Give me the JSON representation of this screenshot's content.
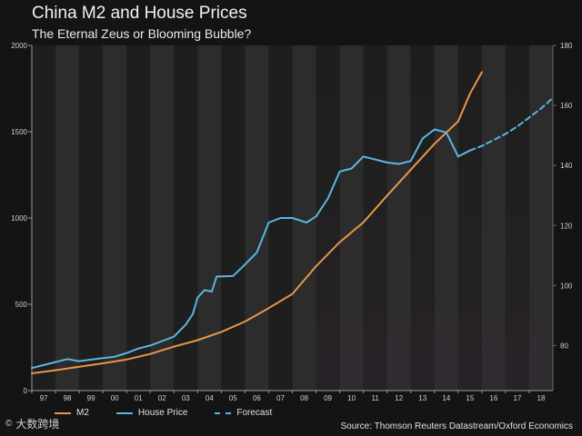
{
  "chart_data": {
    "type": "line",
    "title": "China M2 and House Prices",
    "subtitle": "The Eternal Zeus or Blooming Bubble?",
    "source": "Source: Thomson Reuters Datastream/Oxford Economics",
    "watermark": "大数跨境",
    "x_ticks": [
      "97",
      "98",
      "99",
      "00",
      "01",
      "02",
      "03",
      "04",
      "05",
      "06",
      "07",
      "08",
      "09",
      "10",
      "11",
      "12",
      "13",
      "14",
      "15",
      "16",
      "17",
      "18"
    ],
    "x_range": [
      1997,
      2019
    ],
    "left_axis": {
      "ticks": [
        0,
        500,
        1000,
        1500,
        2000
      ],
      "range": [
        0,
        2000
      ]
    },
    "right_axis": {
      "ticks": [
        80,
        100,
        120,
        140,
        160,
        180
      ],
      "range": [
        65,
        180
      ]
    },
    "legend": [
      "M2",
      "House Price",
      "Forecast"
    ],
    "colors": {
      "m2": "#e8954a",
      "house": "#5bb6e0",
      "forecast": "#5bb6e0"
    },
    "series": [
      {
        "name": "M2",
        "axis": "left",
        "points": [
          [
            1997,
            100
          ],
          [
            1998,
            118
          ],
          [
            1999,
            138
          ],
          [
            2000,
            158
          ],
          [
            2001,
            180
          ],
          [
            2002,
            212
          ],
          [
            2003,
            255
          ],
          [
            2004,
            292
          ],
          [
            2005,
            340
          ],
          [
            2006,
            400
          ],
          [
            2007,
            478
          ],
          [
            2008,
            560
          ],
          [
            2009,
            720
          ],
          [
            2010,
            860
          ],
          [
            2011,
            975
          ],
          [
            2012,
            1130
          ],
          [
            2013,
            1280
          ],
          [
            2014,
            1430
          ],
          [
            2015,
            1560
          ],
          [
            2015.5,
            1720
          ],
          [
            2016,
            1845
          ]
        ]
      },
      {
        "name": "House Price",
        "axis": "right",
        "points": [
          [
            1997,
            72.5
          ],
          [
            1997.5,
            73.5
          ],
          [
            1998,
            74.5
          ],
          [
            1998.5,
            75.5
          ],
          [
            1999,
            74.8
          ],
          [
            2000,
            75.8
          ],
          [
            2000.5,
            76.3
          ],
          [
            2001,
            77.5
          ],
          [
            2001.5,
            79
          ],
          [
            2002,
            80
          ],
          [
            2002.5,
            81.5
          ],
          [
            2003,
            83
          ],
          [
            2003.5,
            87
          ],
          [
            2003.8,
            90.5
          ],
          [
            2004,
            96
          ],
          [
            2004.3,
            98.5
          ],
          [
            2004.6,
            98
          ],
          [
            2004.8,
            103
          ],
          [
            2005,
            103
          ],
          [
            2005.5,
            103.2
          ],
          [
            2006,
            107
          ],
          [
            2006.5,
            111
          ],
          [
            2007,
            121
          ],
          [
            2007.5,
            122.5
          ],
          [
            2008,
            122.5
          ],
          [
            2008.6,
            121
          ],
          [
            2009,
            123
          ],
          [
            2009.5,
            129
          ],
          [
            2010,
            138
          ],
          [
            2010.5,
            139
          ],
          [
            2011,
            143
          ],
          [
            2011.5,
            142
          ],
          [
            2012,
            141
          ],
          [
            2012.5,
            140.5
          ],
          [
            2013,
            141.5
          ],
          [
            2013.5,
            149
          ],
          [
            2014,
            152
          ],
          [
            2014.5,
            151
          ],
          [
            2015,
            143
          ],
          [
            2015.5,
            145
          ]
        ]
      },
      {
        "name": "Forecast",
        "axis": "right",
        "points": [
          [
            2015.5,
            145
          ],
          [
            2016,
            146.5
          ],
          [
            2016.5,
            148.5
          ],
          [
            2017,
            150.5
          ],
          [
            2017.5,
            153
          ],
          [
            2018,
            156
          ],
          [
            2018.5,
            159
          ],
          [
            2019,
            162.5
          ]
        ]
      }
    ]
  }
}
